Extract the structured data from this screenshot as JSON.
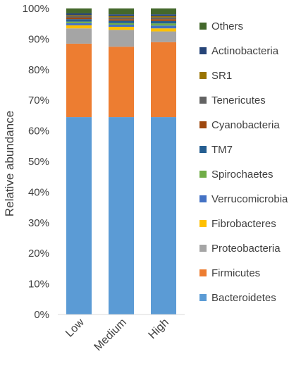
{
  "chart_data": {
    "type": "bar",
    "stacked": true,
    "percent": true,
    "categories": [
      "Low",
      "Medium",
      "High"
    ],
    "ylabel": "Relative abundance",
    "xlabel": "",
    "title": "",
    "ylim": [
      0,
      100
    ],
    "yticks": [
      "0%",
      "10%",
      "20%",
      "30%",
      "40%",
      "50%",
      "60%",
      "70%",
      "80%",
      "90%",
      "100%"
    ],
    "legend_position": "right",
    "series": [
      {
        "name": "Bacteroidetes",
        "color": "#5b9bd5",
        "values": [
          64.5,
          64.5,
          64.5
        ]
      },
      {
        "name": "Firmicutes",
        "color": "#ed7d31",
        "values": [
          24.0,
          23.0,
          24.5
        ]
      },
      {
        "name": "Proteobacteria",
        "color": "#a5a5a5",
        "values": [
          5.0,
          5.5,
          3.5
        ]
      },
      {
        "name": "Fibrobacteres",
        "color": "#ffc000",
        "values": [
          1.0,
          1.0,
          1.0
        ]
      },
      {
        "name": "Verrucomicrobia",
        "color": "#4472c4",
        "values": [
          0.7,
          0.7,
          0.9
        ]
      },
      {
        "name": "Spirochaetes",
        "color": "#70ad47",
        "values": [
          0.5,
          0.5,
          0.7
        ]
      },
      {
        "name": "TM7",
        "color": "#255e91",
        "values": [
          0.8,
          0.8,
          0.8
        ]
      },
      {
        "name": "Cyanobacteria",
        "color": "#9e480e",
        "values": [
          0.5,
          0.5,
          0.6
        ]
      },
      {
        "name": "Tenericutes",
        "color": "#636363",
        "values": [
          0.5,
          0.6,
          0.6
        ]
      },
      {
        "name": "SR1",
        "color": "#997300",
        "values": [
          0.3,
          0.4,
          0.4
        ]
      },
      {
        "name": "Actinobacteria",
        "color": "#264478",
        "values": [
          0.6,
          0.6,
          0.6
        ]
      },
      {
        "name": "Others",
        "color": "#43682b",
        "values": [
          1.6,
          1.9,
          1.9
        ]
      }
    ]
  }
}
